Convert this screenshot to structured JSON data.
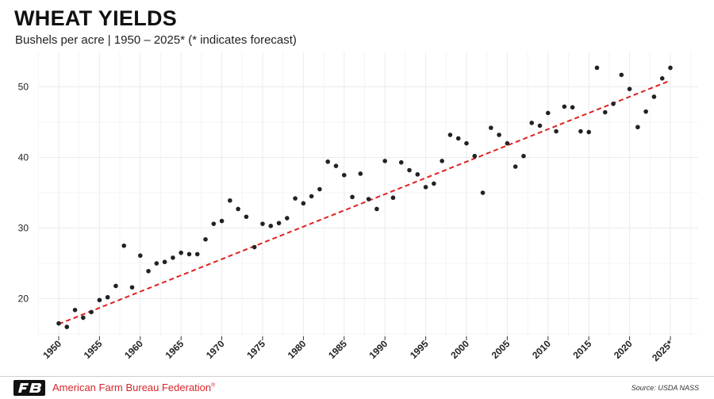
{
  "header": {
    "title": "WHEAT YIELDS",
    "subtitle": "Bushels per acre | 1950 – 2025* (* indicates forecast)"
  },
  "footer": {
    "organization": "American Farm Bureau Federation",
    "trademark": "®",
    "source": "Source: USDA NASS",
    "logo_icon": "afbf-logo-icon"
  },
  "colors": {
    "points": "#222222",
    "trend": "#e02020",
    "brand": "#d7262b",
    "grid": "#ebebeb"
  },
  "chart_data": {
    "type": "scatter",
    "title": "WHEAT YIELDS",
    "subtitle": "Bushels per acre | 1950 – 2025* (* indicates forecast)",
    "xlabel": "",
    "ylabel": "",
    "xlim": [
      1950,
      2025
    ],
    "ylim": [
      15,
      55
    ],
    "y_ticks": [
      20,
      30,
      40,
      50
    ],
    "x_ticks": [
      1950,
      1955,
      1960,
      1965,
      1970,
      1975,
      1980,
      1985,
      1990,
      1995,
      2000,
      2005,
      2010,
      2015,
      2020,
      2025
    ],
    "x_tick_labels": [
      "1950",
      "1955",
      "1960",
      "1965",
      "1970",
      "1975",
      "1980",
      "1985",
      "1990",
      "1995",
      "2000",
      "2005",
      "2010",
      "2015",
      "2020",
      "2025*"
    ],
    "grid": true,
    "legend": "none",
    "series": [
      {
        "x": [
          1950,
          1951,
          1952,
          1953,
          1954,
          1955,
          1956,
          1957,
          1958,
          1959,
          1960,
          1961,
          1962,
          1963,
          1964,
          1965,
          1966,
          1967,
          1968,
          1969,
          1970,
          1971,
          1972,
          1973,
          1974,
          1975,
          1976,
          1977,
          1978,
          1979,
          1980,
          1981,
          1982,
          1983,
          1984,
          1985,
          1986,
          1987,
          1988,
          1989,
          1990,
          1991,
          1992,
          1993,
          1994,
          1995,
          1996,
          1997,
          1998,
          1999,
          2000,
          2001,
          2002,
          2003,
          2004,
          2005,
          2006,
          2007,
          2008,
          2009,
          2010,
          2011,
          2012,
          2013,
          2014,
          2015,
          2016,
          2017,
          2018,
          2019,
          2020,
          2021,
          2022,
          2023,
          2024,
          2025
        ],
        "y": [
          16.5,
          16.0,
          18.4,
          17.3,
          18.1,
          19.8,
          20.2,
          21.8,
          27.5,
          21.6,
          26.1,
          23.9,
          25.0,
          25.2,
          25.8,
          26.5,
          26.3,
          26.3,
          28.4,
          30.6,
          31.0,
          33.9,
          32.7,
          31.6,
          27.3,
          30.6,
          30.3,
          30.7,
          31.4,
          34.2,
          33.5,
          34.5,
          35.5,
          39.4,
          38.8,
          37.5,
          34.4,
          37.7,
          34.1,
          32.7,
          39.5,
          34.3,
          39.3,
          38.2,
          37.6,
          35.8,
          36.3,
          39.5,
          43.2,
          42.7,
          42.0,
          40.2,
          35.0,
          44.2,
          43.2,
          42.0,
          38.7,
          40.2,
          44.9,
          44.5,
          46.3,
          43.7,
          47.2,
          47.1,
          43.7,
          43.6,
          52.7,
          46.4,
          47.6,
          51.7,
          49.7,
          44.3,
          46.5,
          48.6,
          51.2,
          52.7
        ]
      }
    ],
    "trendline": {
      "x": [
        1950,
        2025
      ],
      "y": [
        16.4,
        50.9
      ],
      "style": "dashed"
    }
  }
}
